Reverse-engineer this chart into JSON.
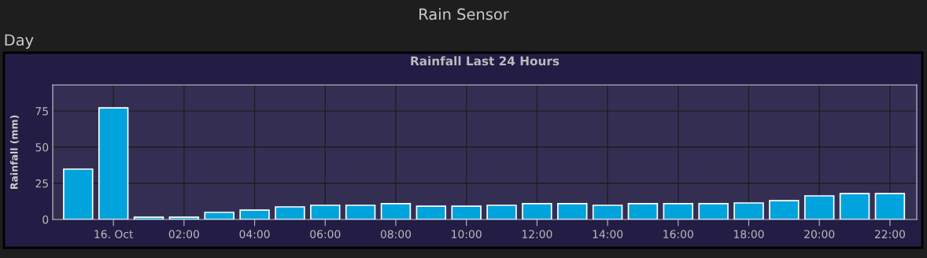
{
  "chart_data": {
    "type": "bar",
    "title": "Rainfall Last 24 Hours",
    "ylabel": "Rainfall (mm)",
    "annotations": [
      "Rain Sensor",
      "Day"
    ],
    "x": [
      -1,
      0,
      1,
      2,
      3,
      4,
      5,
      6,
      7,
      8,
      9,
      10,
      11,
      12,
      13,
      14,
      15,
      16,
      17,
      18,
      19,
      20,
      21,
      22
    ],
    "values": [
      34.8,
      77.2,
      1.6,
      1.6,
      4.9,
      6.5,
      8.7,
      9.8,
      9.8,
      10.9,
      9.2,
      9.2,
      9.8,
      10.9,
      10.9,
      9.8,
      10.9,
      10.9,
      10.9,
      11.4,
      13,
      16.3,
      17.9,
      17.9
    ],
    "color": "#00a3dc",
    "xlim": [
      -1.72,
      22.76
    ],
    "xticks": [
      {
        "value": 0,
        "label": "16. Oct"
      },
      {
        "value": 2,
        "label": "02:00"
      },
      {
        "value": 4,
        "label": "04:00"
      },
      {
        "value": 6,
        "label": "06:00"
      },
      {
        "value": 8,
        "label": "08:00"
      },
      {
        "value": 10,
        "label": "10:00"
      },
      {
        "value": 12,
        "label": "12:00"
      },
      {
        "value": 14,
        "label": "14:00"
      },
      {
        "value": 16,
        "label": "16:00"
      },
      {
        "value": 18,
        "label": "18:00"
      },
      {
        "value": 20,
        "label": "20:00"
      },
      {
        "value": 22,
        "label": "22:00"
      }
    ],
    "ylim": [
      0,
      93
    ],
    "yticks": [
      0,
      25,
      50,
      75
    ],
    "grid": true,
    "legend": false
  }
}
